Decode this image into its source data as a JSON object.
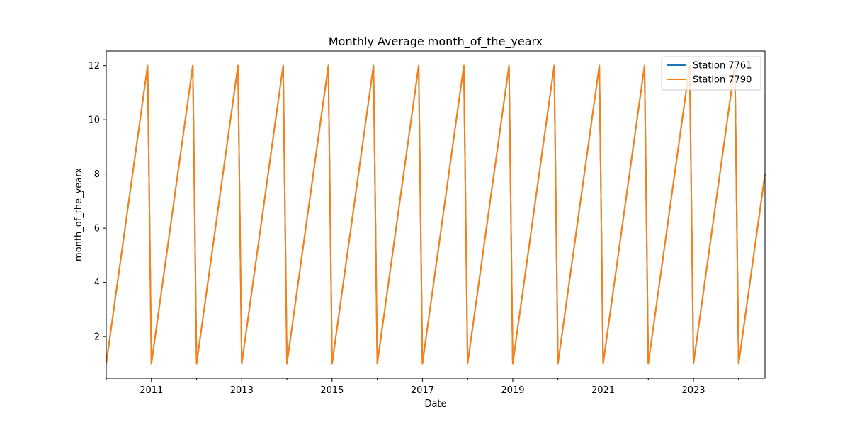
{
  "chart_data": {
    "type": "line",
    "title": "Monthly Average month_of_the_yearx",
    "xlabel": "Date",
    "ylabel": "month_of_the_yearx",
    "x_range": [
      "2010-01",
      "2024-08"
    ],
    "ylim": [
      0.46,
      12.54
    ],
    "y_ticks": [
      2,
      4,
      6,
      8,
      10,
      12
    ],
    "x_tick_labels": [
      "2011",
      "2013",
      "2015",
      "2017",
      "2019",
      "2021",
      "2023"
    ],
    "x_major_years": [
      2011,
      2013,
      2015,
      2017,
      2019,
      2021,
      2023
    ],
    "x_minor_years": [
      2012,
      2014,
      2016,
      2018,
      2020,
      2022,
      2024
    ],
    "grid": false,
    "legend_position": "top-right",
    "series": [
      {
        "name": "Station 7761",
        "color": "#1f77b4",
        "start": "2010-01",
        "end": "2024-08",
        "rule": "value equals calendar month number (1-12) of each monthly average"
      },
      {
        "name": "Station 7790",
        "color": "#ff7f0e",
        "start": "2010-01",
        "end": "2024-08",
        "rule": "value equals calendar month number (1-12) of each monthly average"
      }
    ]
  }
}
